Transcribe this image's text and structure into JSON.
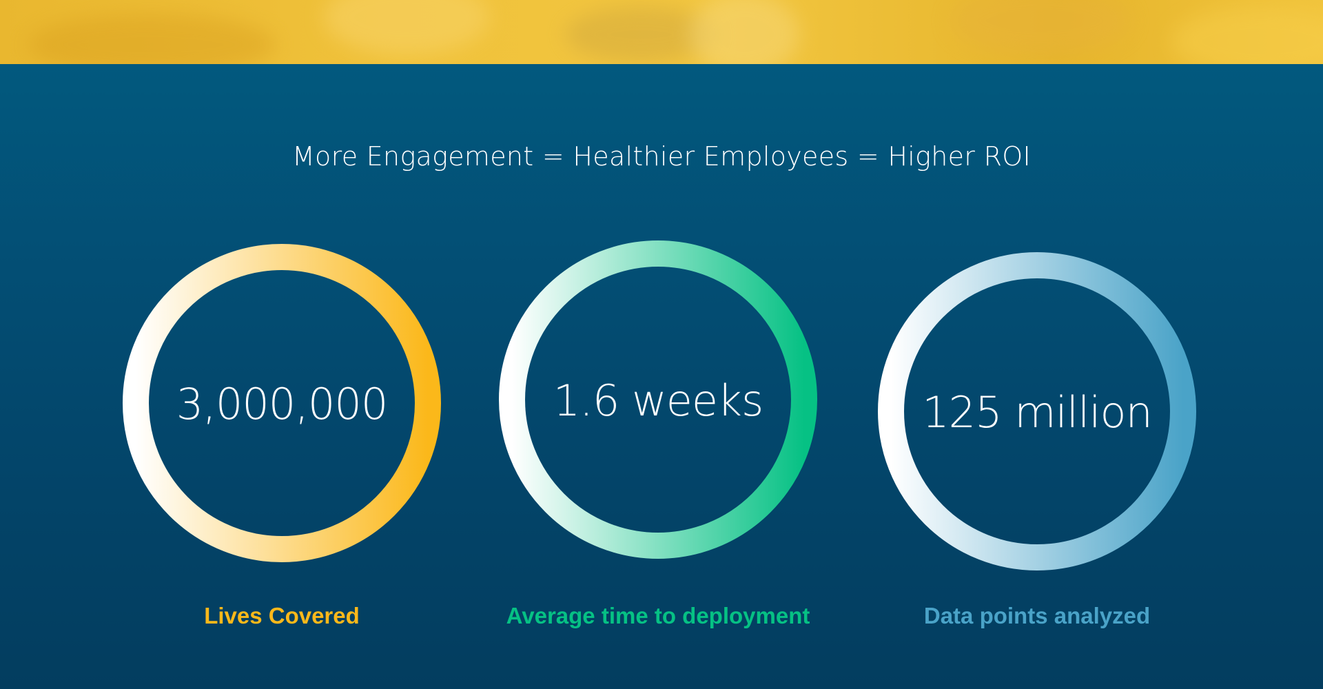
{
  "headline": "More Engagement = Healthier Employees = Higher ROI",
  "colors": {
    "background": "#02456a",
    "hero": "#f0c23b",
    "gold": "#fbb81a",
    "green": "#06c184",
    "blue": "#4aa3c8"
  },
  "stats": [
    {
      "value": "3,000,000",
      "label": "Lives Covered",
      "color": "#fbb81a"
    },
    {
      "value": "1.6 weeks",
      "label": "Average time to deployment",
      "color": "#06c184"
    },
    {
      "value": "125 million",
      "label": "Data points analyzed",
      "color": "#4aa3c8"
    }
  ]
}
